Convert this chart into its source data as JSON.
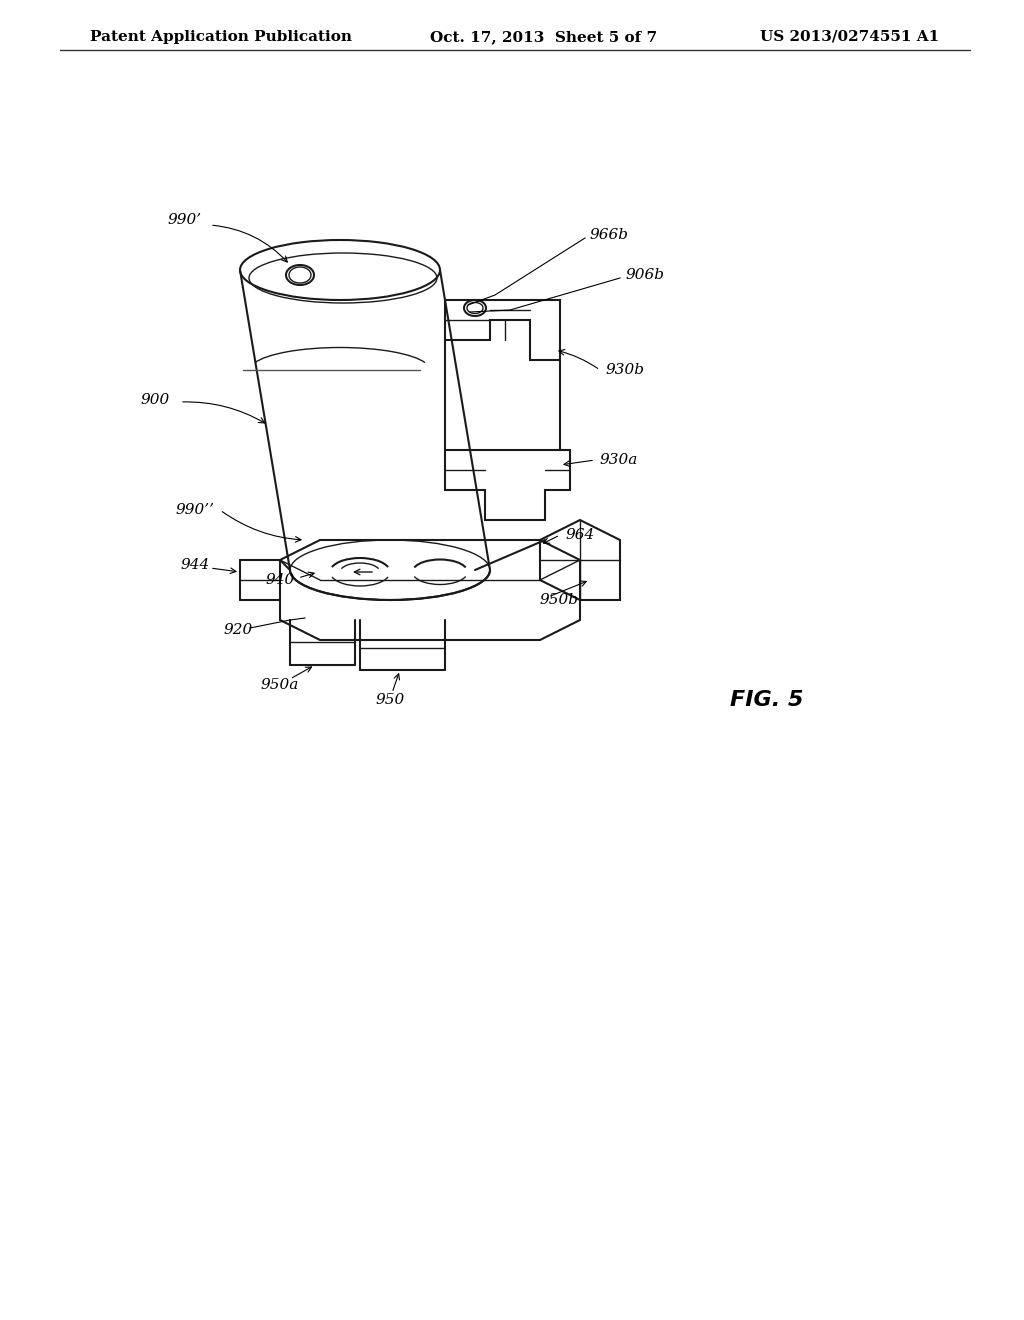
{
  "header_left": "Patent Application Publication",
  "header_center": "Oct. 17, 2013  Sheet 5 of 7",
  "header_right": "US 2013/0274551 A1",
  "fig_label": "FIG. 5",
  "labels": {
    "990_prime": "990’",
    "900": "900",
    "990_dprime": "990’’",
    "966b": "966b",
    "906b": "906b",
    "930b": "930b",
    "930a": "930a",
    "964": "964",
    "940": "940",
    "944": "944",
    "920": "920",
    "950a": "950a",
    "950": "950",
    "950b": "950b"
  },
  "bg_color": "#ffffff",
  "line_color": "#1a1a1a",
  "text_color": "#000000",
  "header_fontsize": 11,
  "label_fontsize": 11,
  "fig_label_fontsize": 16
}
